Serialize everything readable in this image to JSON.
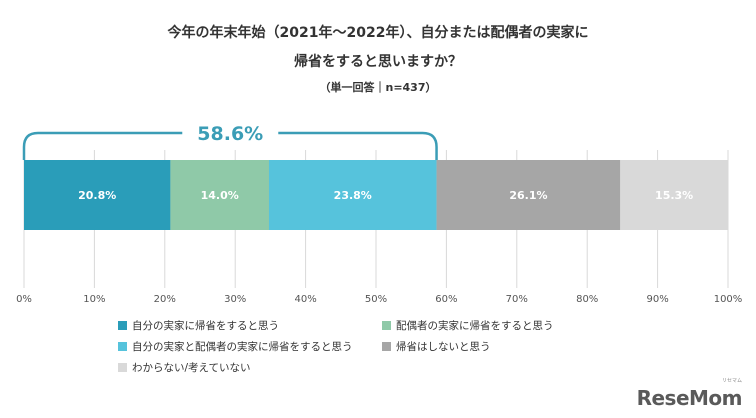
{
  "chart_data": {
    "type": "bar",
    "orientation": "horizontal-stacked",
    "title_line1": "今年の年末年始（2021年～2022年）、自分または配偶者の実家に",
    "title_line2": "帰省をすると思いますか？",
    "subtitle": "（単一回答｜n=437）",
    "series": [
      {
        "name": "自分の実家に帰省をすると思う",
        "value": 20.8,
        "label": "20.8%",
        "color": "#2a9db9"
      },
      {
        "name": "配偶者の実家に帰省をすると思う",
        "value": 14.0,
        "label": "14.0%",
        "color": "#8fc9a8"
      },
      {
        "name": "自分の実家と配偶者の実家に帰省をすると思う",
        "value": 23.8,
        "label": "23.8%",
        "color": "#56c3dc"
      },
      {
        "name": "帰省はしないと思う",
        "value": 26.1,
        "label": "26.1%",
        "color": "#a6a6a6"
      },
      {
        "name": "わからない/考えていない",
        "value": 15.3,
        "label": "15.3%",
        "color": "#d9d9d9"
      }
    ],
    "bracket_label": "58.6%",
    "bracket_color": "#3b9db6",
    "xlim": [
      0,
      100
    ],
    "ticks": [
      "0%",
      "10%",
      "20%",
      "30%",
      "40%",
      "50%",
      "60%",
      "70%",
      "80%",
      "90%",
      "100%"
    ],
    "grid": true,
    "legend_position": "bottom-left"
  },
  "logo": {
    "text": "ReseMom",
    "sub": "リセマム"
  }
}
